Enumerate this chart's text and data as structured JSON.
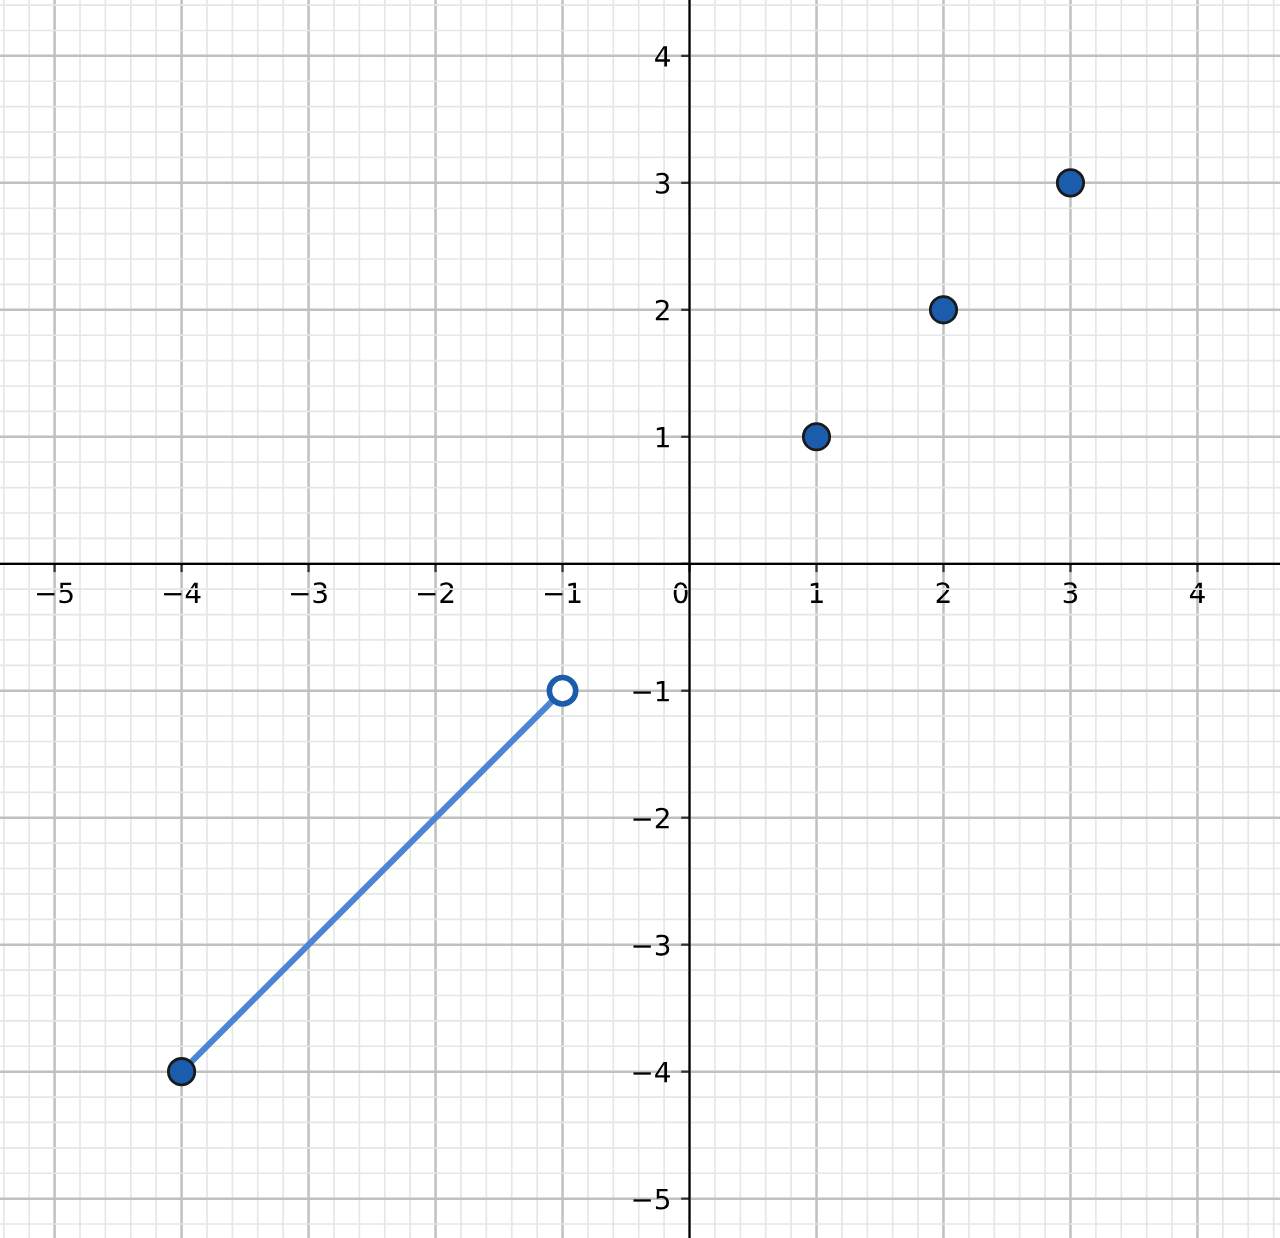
{
  "chart_data": {
    "type": "scatter",
    "xlim": [
      -5.43,
      4.65
    ],
    "ylim": [
      -5.31,
      4.44
    ],
    "xticks": [
      {
        "value": -5,
        "label": "−5"
      },
      {
        "value": -4,
        "label": "−4"
      },
      {
        "value": -3,
        "label": "−3"
      },
      {
        "value": -2,
        "label": "−2"
      },
      {
        "value": -1,
        "label": "−1"
      },
      {
        "value": 0,
        "label": "0"
      },
      1,
      2,
      3,
      4
    ],
    "yticks": [
      {
        "value": -5,
        "label": "−5"
      },
      {
        "value": -4,
        "label": "−4"
      },
      {
        "value": -3,
        "label": "−3"
      },
      {
        "value": -2,
        "label": "−2"
      },
      {
        "value": -1,
        "label": "−1"
      },
      {
        "value": 0,
        "label": null
      },
      1,
      2,
      3,
      4
    ],
    "grid": true,
    "marker": "circle",
    "series": [
      {
        "type": "line",
        "color": "#4a86d4",
        "colors": [
          "#1c5cac",
          "#ffffff"
        ],
        "x": [
          -4,
          -1
        ],
        "values": [
          -4,
          -1
        ]
      },
      {
        "color": "#1c5cac",
        "x": [
          1,
          2,
          3
        ],
        "values": [
          1,
          2,
          3
        ]
      }
    ]
  }
}
